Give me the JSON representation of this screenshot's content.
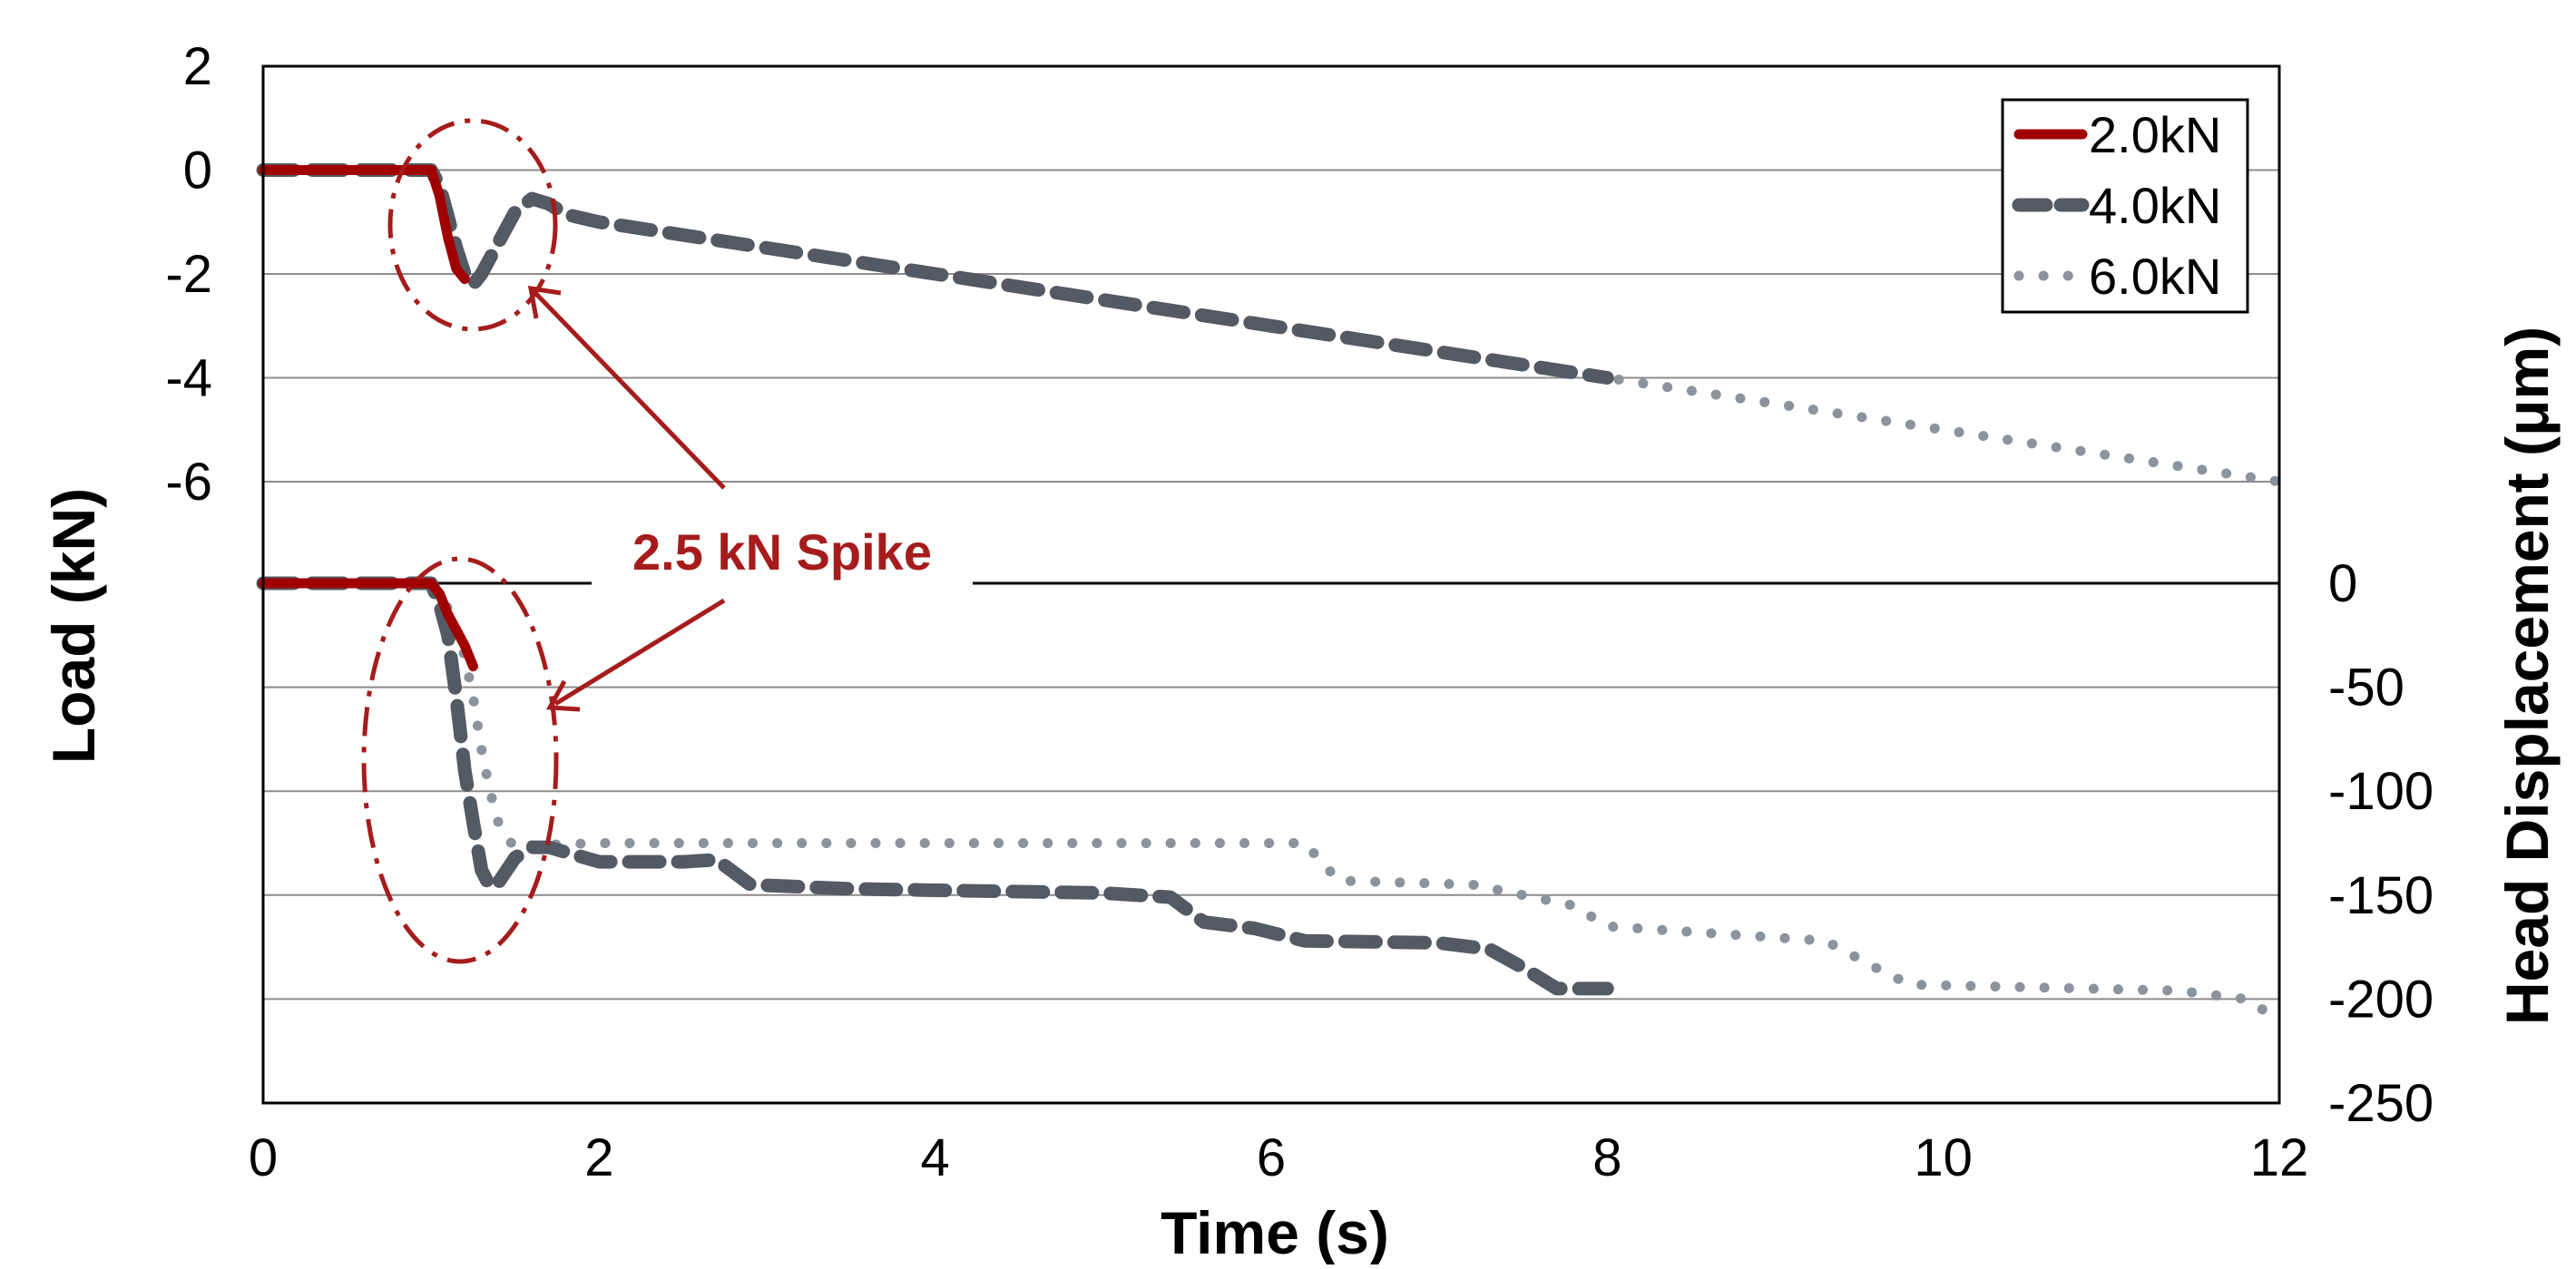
{
  "chart_data": {
    "type": "line",
    "xlabel": "Time (s)",
    "ylabel": "Load (kN)",
    "y2label": "Head Displacement (μm)",
    "xlim": [
      0,
      12
    ],
    "xticks": [
      "0",
      "2",
      "4",
      "6",
      "8",
      "10",
      "12"
    ],
    "load_axis": {
      "ylim": [
        -6,
        2
      ],
      "ticks": [
        "2",
        "0",
        "-2",
        "-4",
        "-6"
      ]
    },
    "displacement_axis": {
      "ylim": [
        -250,
        0
      ],
      "ticks": [
        "0",
        "-50",
        "-100",
        "-150",
        "-200",
        "-250"
      ]
    },
    "grid": true,
    "legend_position": "top-right",
    "colors": {
      "2.0kN": "#a00000",
      "4.0kN": "#545a63",
      "6.0kN": "#8b939d",
      "annotation": "#a61c1c"
    },
    "annotation": {
      "text": "2.5 kN Spike"
    },
    "series": [
      {
        "name": "2.0kN",
        "style": "solid",
        "load": {
          "x": [
            0,
            0.5,
            1.0,
            1.05,
            1.1,
            1.15,
            1.2
          ],
          "y": [
            0,
            0,
            0,
            -0.5,
            -1.3,
            -1.9,
            -2.1
          ]
        },
        "displacement": {
          "x": [
            0,
            0.5,
            1.0,
            1.05,
            1.1,
            1.2,
            1.25
          ],
          "y": [
            0,
            0,
            0,
            -5,
            -15,
            -30,
            -40
          ]
        }
      },
      {
        "name": "4.0kN",
        "style": "dashed",
        "load": {
          "x": [
            0,
            0.5,
            1.0,
            1.05,
            1.1,
            1.15,
            1.2,
            1.25,
            1.3,
            1.4,
            1.5,
            1.6,
            1.7,
            1.8,
            2.0,
            3.0,
            4.0,
            5.0,
            6.0,
            7.0,
            8.0
          ],
          "y": [
            0,
            0,
            0,
            -0.3,
            -0.9,
            -1.5,
            -2.0,
            -2.2,
            -2.0,
            -1.4,
            -0.8,
            -0.55,
            -0.65,
            -0.85,
            -1.0,
            -1.5,
            -2.0,
            -2.5,
            -3.0,
            -3.5,
            -4.0
          ]
        },
        "displacement": {
          "x": [
            0,
            0.5,
            1.0,
            1.05,
            1.1,
            1.15,
            1.2,
            1.25,
            1.3,
            1.35,
            1.4,
            1.5,
            1.6,
            1.7,
            2.0,
            2.5,
            2.7,
            2.9,
            3.5,
            5.0,
            5.4,
            5.6,
            5.9,
            6.2,
            7.0,
            7.3,
            7.5,
            7.7,
            8.0
          ],
          "y": [
            0,
            0,
            0,
            -10,
            -25,
            -55,
            -90,
            -115,
            -138,
            -146,
            -144,
            -132,
            -127,
            -127,
            -134,
            -134,
            -133,
            -145,
            -147,
            -149,
            -151,
            -163,
            -166,
            -172,
            -173,
            -176,
            -185,
            -195,
            -195
          ]
        }
      },
      {
        "name": "6.0kN",
        "style": "dotted",
        "load": {
          "x": [
            0,
            0.5,
            1.0,
            1.05,
            1.1,
            1.15,
            1.2,
            1.25,
            1.3,
            1.4,
            1.5,
            1.6,
            1.7,
            1.8,
            2.0,
            4.0,
            6.0,
            8.0,
            10.0,
            12.0
          ],
          "y": [
            0,
            0,
            0,
            -0.3,
            -0.9,
            -1.5,
            -2.0,
            -2.2,
            -2.0,
            -1.4,
            -0.8,
            -0.55,
            -0.65,
            -0.85,
            -1.0,
            -2.0,
            -3.0,
            -4.0,
            -5.0,
            -6.0
          ]
        },
        "displacement": {
          "x": [
            0,
            0.5,
            1.0,
            1.1,
            1.2,
            1.25,
            1.3,
            1.35,
            1.4,
            1.5,
            1.6,
            2.0,
            4.0,
            6.2,
            6.4,
            7.2,
            7.8,
            8.0,
            9.3,
            9.6,
            9.8,
            11.4,
            11.8,
            12.0
          ],
          "y": [
            0,
            0,
            0,
            -12,
            -35,
            -55,
            -80,
            -100,
            -115,
            -128,
            -126,
            -125,
            -125,
            -125,
            -143,
            -145,
            -155,
            -165,
            -172,
            -185,
            -193,
            -196,
            -200,
            -210
          ]
        }
      }
    ]
  }
}
